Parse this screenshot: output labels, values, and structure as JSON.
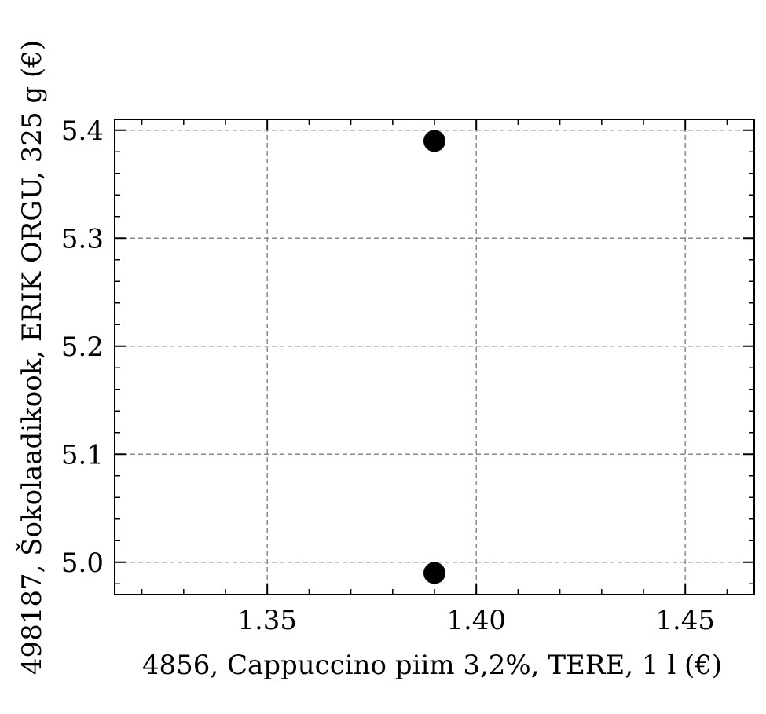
{
  "chart_data": {
    "type": "scatter",
    "title": "",
    "xlabel": "4856, Cappuccino piim 3,2%, TERE, 1 l (€)",
    "ylabel": "498187, Šokolaadikook, ERIK ORGU, 325 g (€)",
    "xlim": [
      1.3135,
      1.4665
    ],
    "ylim": [
      4.97,
      5.41
    ],
    "x_ticks": [
      1.35,
      1.4,
      1.45
    ],
    "x_tick_labels": [
      "1.35",
      "1.40",
      "1.45"
    ],
    "y_ticks": [
      5.0,
      5.1,
      5.2,
      5.3,
      5.4
    ],
    "y_tick_labels": [
      "5.0",
      "5.1",
      "5.2",
      "5.3",
      "5.4"
    ],
    "grid": true,
    "series": [
      {
        "points": [
          {
            "x": 1.39,
            "y": 5.39
          },
          {
            "x": 1.39,
            "y": 4.99
          }
        ],
        "color": "#000000"
      }
    ]
  }
}
